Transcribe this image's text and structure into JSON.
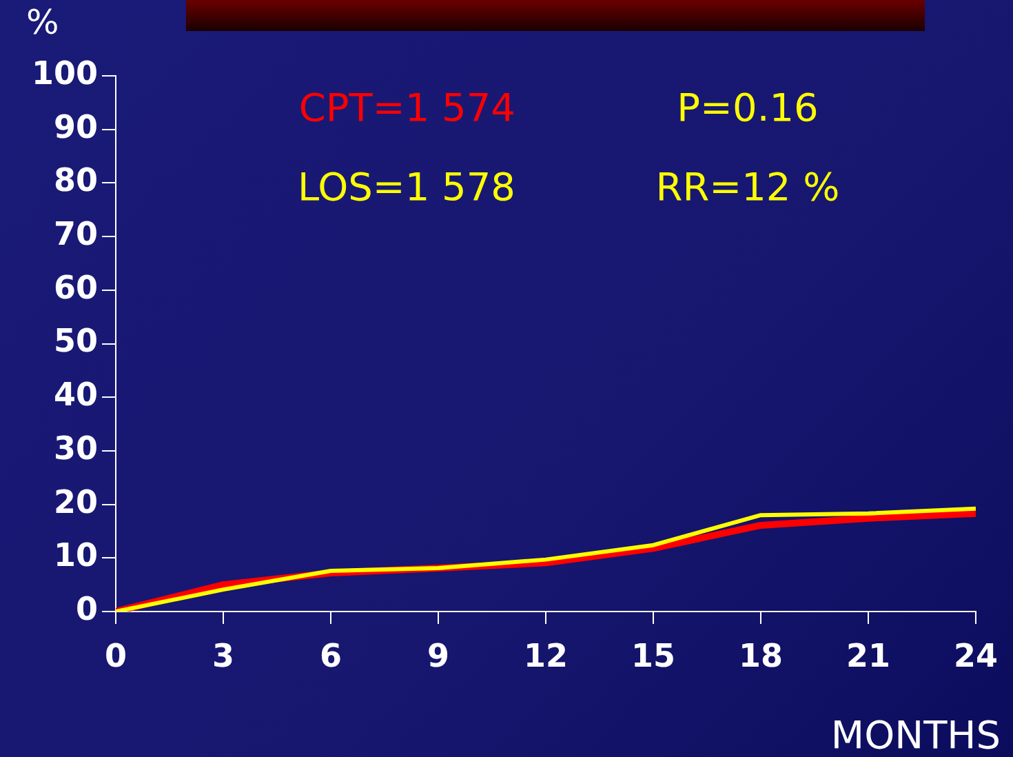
{
  "chart_data": {
    "type": "line",
    "xlabel": "MONTHS",
    "ylabel": "%",
    "x": [
      0,
      3,
      6,
      9,
      12,
      15,
      18,
      21,
      24
    ],
    "series": [
      {
        "name": "CPT=1 574",
        "color": "#ff0000",
        "values": [
          0,
          5.0,
          7.2,
          8.1,
          9.1,
          11.8,
          16.1,
          17.4,
          18.3
        ]
      },
      {
        "name": "LOS=1 578",
        "color": "#ffff00",
        "values": [
          0,
          4.1,
          7.6,
          8.1,
          9.7,
          12.4,
          18.0,
          18.3,
          19.2
        ]
      }
    ],
    "annotations": [
      "P=0.16",
      "RR=12 %"
    ],
    "xlim": [
      0,
      24
    ],
    "xticks": [
      0,
      3,
      6,
      9,
      12,
      15,
      18,
      21,
      24
    ],
    "ylim": [
      0,
      100
    ],
    "yticks": [
      0,
      10,
      20,
      30,
      40,
      50,
      60,
      70,
      80,
      90,
      100
    ],
    "grid": false,
    "legend": "top left",
    "marker": "none",
    "line_style": "solid"
  }
}
